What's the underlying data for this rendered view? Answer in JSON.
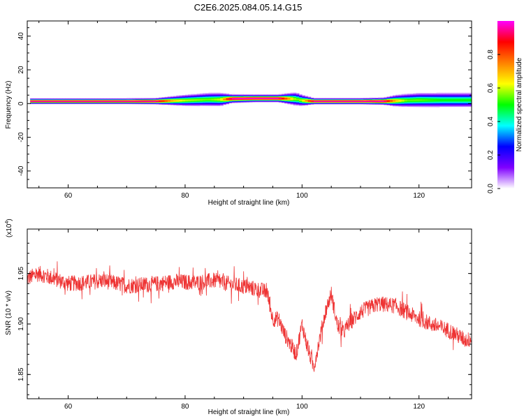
{
  "title": "C2E6.2025.084.05.14.G15",
  "chart_data": [
    {
      "type": "heatmap",
      "xlabel": "Height of straight line (km)",
      "ylabel": "Frequency (Hz)",
      "xlim": [
        53,
        129
      ],
      "ylim": [
        -50,
        49
      ],
      "xticks": [
        60,
        80,
        100,
        120
      ],
      "yticks": [
        -40,
        -20,
        0,
        20,
        40
      ],
      "colorbar": {
        "label": "Normalized spectral amplitude",
        "range": [
          0,
          1
        ],
        "ticks": [
          "0.0",
          "0.2",
          "0.4",
          "0.6",
          "0.8"
        ],
        "colors": [
          "#ffffff",
          "#8000ff",
          "#0000ff",
          "#00ffff",
          "#00ff00",
          "#ffff00",
          "#ff8000",
          "#ff0000",
          "#ff00ff"
        ]
      },
      "ridge": {
        "x": [
          53.5,
          60,
          70,
          75,
          78,
          80,
          84,
          86,
          88,
          92,
          96,
          98,
          99,
          100,
          102,
          110,
          114,
          116,
          118,
          120,
          124,
          129
        ],
        "freq": [
          1.5,
          1.5,
          1.5,
          1.5,
          1.8,
          2.0,
          2.5,
          2.5,
          3.0,
          3.2,
          3.2,
          3.0,
          2.8,
          2.0,
          1.5,
          1.5,
          1.5,
          1.8,
          2.0,
          2.2,
          2.2,
          2.2
        ],
        "peak": [
          1.0,
          1.0,
          1.0,
          1.0,
          0.7,
          0.6,
          0.55,
          0.6,
          1.0,
          1.0,
          1.0,
          0.7,
          0.55,
          0.6,
          1.0,
          1.0,
          1.0,
          0.7,
          0.55,
          0.55,
          0.5,
          0.5
        ],
        "halfwidth": [
          1.2,
          1.2,
          1.2,
          1.3,
          2.0,
          2.5,
          3.0,
          3.0,
          1.8,
          1.6,
          1.6,
          2.5,
          3.0,
          2.5,
          1.3,
          1.3,
          1.5,
          2.5,
          3.0,
          3.2,
          3.3,
          3.3
        ]
      }
    },
    {
      "type": "line",
      "xlabel": "Height of straight line (km)",
      "ylabel": "SNR (10 * v/v)",
      "y_multiplier": "(x10",
      "y_multiplier_exp": "4",
      "xlim": [
        53,
        129
      ],
      "ylim": [
        1.826,
        1.994
      ],
      "xticks": [
        60,
        80,
        100,
        120
      ],
      "yticks": [
        "1.85",
        "1.90",
        "1.95"
      ],
      "series": [
        {
          "color": "#ee3333",
          "x": [
            53,
            55,
            58,
            60,
            63,
            66,
            70,
            74,
            78,
            82,
            85,
            88,
            91,
            94,
            95,
            96,
            97,
            98,
            99,
            100,
            101,
            102,
            103,
            104,
            105,
            106,
            107,
            108,
            110,
            113,
            116,
            119,
            122,
            125,
            128,
            129
          ],
          "y": [
            1.945,
            1.95,
            1.944,
            1.94,
            1.941,
            1.943,
            1.938,
            1.939,
            1.942,
            1.941,
            1.943,
            1.939,
            1.936,
            1.932,
            1.905,
            1.905,
            1.89,
            1.88,
            1.87,
            1.9,
            1.875,
            1.857,
            1.885,
            1.912,
            1.93,
            1.9,
            1.891,
            1.9,
            1.912,
            1.92,
            1.918,
            1.908,
            1.9,
            1.894,
            1.884,
            1.885
          ],
          "noise": 0.008
        }
      ]
    }
  ]
}
